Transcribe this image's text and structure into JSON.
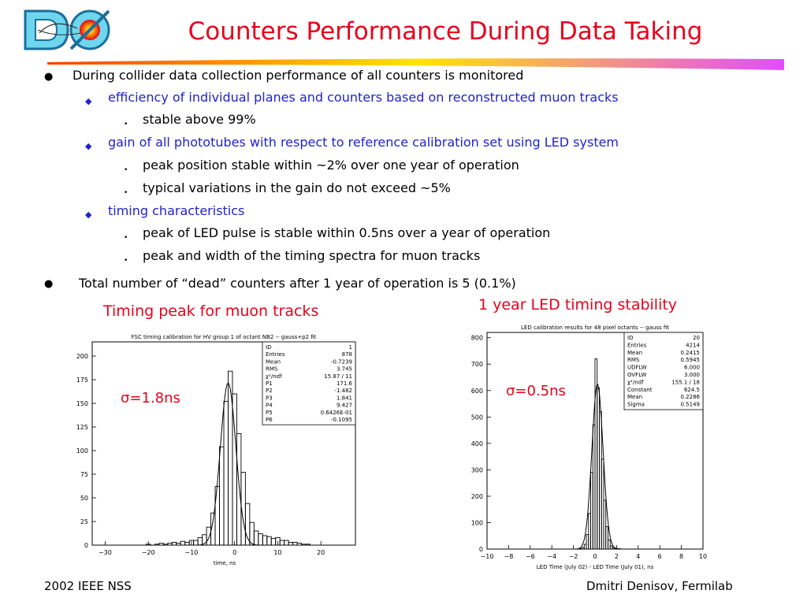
{
  "slide": {
    "title": "Counters Performance During Data Taking",
    "bullets": [
      {
        "level": 1,
        "text": "During collider data collection performance of all counters is monitored"
      },
      {
        "level": 2,
        "text": "efficiency of individual planes and counters based on reconstructed muon tracks"
      },
      {
        "level": 3,
        "text": "stable above 99%"
      },
      {
        "level": 2,
        "text": "gain of all phototubes with respect to reference calibration set using LED system"
      },
      {
        "level": 3,
        "text": "peak position stable within ~2% over one year of operation"
      },
      {
        "level": 3,
        "text": "typical variations in the gain do not exceed ~5%"
      },
      {
        "level": 2,
        "text": "timing characteristics"
      },
      {
        "level": 3,
        "text": "peak of LED pulse is stable within 0.5ns over a year of operation"
      },
      {
        "level": 3,
        "text": "peak and width of the timing spectra for muon tracks"
      },
      {
        "level": 1,
        "text": "Total number of “dead” counters after 1 year of operation is 5 (0.1%)"
      }
    ],
    "captions": {
      "left": "Timing peak for muon tracks",
      "right": "1 year LED timing stability"
    },
    "sigma_left": "σ=1.8ns",
    "sigma_right": "σ=0.5ns",
    "footer": {
      "left": "2002 IEEE NSS",
      "right": "Dmitri Denisov, Fermilab"
    },
    "colors": {
      "title": "#e8001c",
      "level2": "#2222cc",
      "rule_start": "#ff3d00",
      "rule_mid": "#ffe400",
      "rule_end": "#e34cff"
    }
  },
  "chart_data": [
    {
      "type": "histogram",
      "title": "FSC timing calibration for HV group 1 of octant NB2 -- gauss+p2 fit",
      "xlabel": "time, ns",
      "ylabel": "",
      "xlim": [
        -33,
        28
      ],
      "ylim": [
        0,
        215
      ],
      "xticks": [
        -30,
        -20,
        -10,
        0,
        10,
        20
      ],
      "yticks": [
        0,
        25,
        50,
        75,
        100,
        125,
        150,
        175,
        200
      ],
      "ytick_labels": [
        "0",
        "25",
        "50",
        "75",
        "100",
        "125",
        "150",
        "175",
        "200"
      ],
      "x": [
        -20,
        -19,
        -18,
        -17,
        -16,
        -15,
        -14,
        -13,
        -12,
        -11,
        -10,
        -9,
        -8,
        -7,
        -6,
        -5,
        -4,
        -3,
        -2,
        -1,
        0,
        1,
        2,
        3,
        4,
        5,
        6,
        7,
        8,
        9,
        10,
        11,
        12,
        13,
        14,
        15,
        16,
        17,
        18
      ],
      "values": [
        1,
        0,
        1,
        2,
        1,
        2,
        3,
        2,
        4,
        3,
        5,
        5,
        8,
        11,
        19,
        34,
        62,
        104,
        152,
        184,
        160,
        118,
        77,
        44,
        24,
        15,
        12,
        10,
        9,
        7,
        8,
        5,
        5,
        3,
        3,
        2,
        1,
        1,
        0
      ],
      "fit": {
        "mean": -1.5,
        "sigma": 1.8,
        "amp": 171.6
      },
      "stats": [
        {
          "name": "ID",
          "value": "1"
        },
        {
          "name": "Entries",
          "value": "878"
        },
        {
          "name": "Mean",
          "value": "-0.7239"
        },
        {
          "name": "RMS",
          "value": "3.745"
        },
        {
          "name": "χ²/ndf",
          "value": "15.87  /  11"
        },
        {
          "name": "P1",
          "value": "171.6"
        },
        {
          "name": "P2",
          "value": "-1.482"
        },
        {
          "name": "P3",
          "value": "1.841"
        },
        {
          "name": "P4",
          "value": "9.427"
        },
        {
          "name": "P5",
          "value": "0.6426E-01"
        },
        {
          "name": "P6",
          "value": "-0.1095"
        }
      ]
    },
    {
      "type": "histogram",
      "title": "LED calibration results for 48 pixel octants -- gauss fit",
      "xlabel": "LED Time (July 02) - LED Time (July 01), ns",
      "ylabel": "",
      "xlim": [
        -10,
        10
      ],
      "ylim": [
        0,
        820
      ],
      "xticks": [
        -10,
        -8,
        -6,
        -4,
        -2,
        0,
        2,
        4,
        6,
        8,
        10
      ],
      "yticks": [
        0,
        100,
        200,
        300,
        400,
        500,
        600,
        700,
        800
      ],
      "ytick_labels": [
        "0",
        "100",
        "200",
        "300",
        "400",
        "500",
        "600",
        "700",
        "800"
      ],
      "x": [
        -1.3,
        -1.1,
        -0.9,
        -0.7,
        -0.5,
        -0.3,
        -0.1,
        0.1,
        0.3,
        0.5,
        0.7,
        0.9,
        1.1,
        1.3,
        1.5,
        1.7,
        1.9,
        2.1,
        2.3
      ],
      "values": [
        2,
        6,
        18,
        55,
        135,
        290,
        470,
        720,
        610,
        520,
        340,
        185,
        85,
        35,
        12,
        5,
        2,
        2,
        1
      ],
      "fit": {
        "mean": 0.2286,
        "sigma": 0.5149,
        "amp": 624.5
      },
      "stats": [
        {
          "name": "ID",
          "value": "20"
        },
        {
          "name": "Entries",
          "value": "4214"
        },
        {
          "name": "Mean",
          "value": "0.2415"
        },
        {
          "name": "RMS",
          "value": "0.5945"
        },
        {
          "name": "UDFLW",
          "value": "6.000"
        },
        {
          "name": "OVFLW",
          "value": "3.000"
        },
        {
          "name": "χ²/ndf",
          "value": "155.1  /  18"
        },
        {
          "name": "Constant",
          "value": "624.5"
        },
        {
          "name": "Mean",
          "value": "0.2286"
        },
        {
          "name": "Sigma",
          "value": "0.5149"
        }
      ]
    }
  ]
}
